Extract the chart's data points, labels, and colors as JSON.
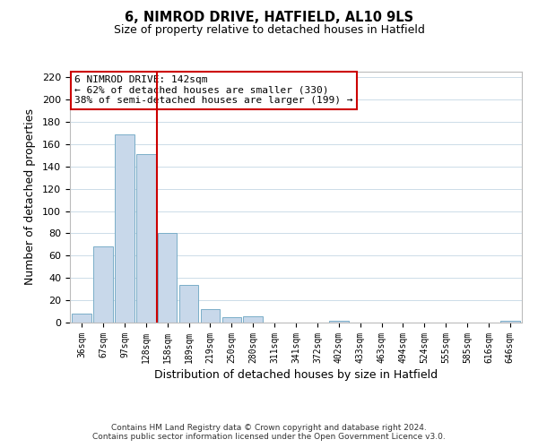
{
  "title": "6, NIMROD DRIVE, HATFIELD, AL10 9LS",
  "subtitle": "Size of property relative to detached houses in Hatfield",
  "xlabel": "Distribution of detached houses by size in Hatfield",
  "ylabel": "Number of detached properties",
  "categories": [
    "36sqm",
    "67sqm",
    "97sqm",
    "128sqm",
    "158sqm",
    "189sqm",
    "219sqm",
    "250sqm",
    "280sqm",
    "311sqm",
    "341sqm",
    "372sqm",
    "402sqm",
    "433sqm",
    "463sqm",
    "494sqm",
    "524sqm",
    "555sqm",
    "585sqm",
    "616sqm",
    "646sqm"
  ],
  "values": [
    8,
    68,
    169,
    151,
    80,
    34,
    12,
    5,
    6,
    0,
    0,
    0,
    2,
    0,
    0,
    0,
    0,
    0,
    0,
    0,
    2
  ],
  "bar_color": "#c8d8ea",
  "bar_edge_color": "#7aaec8",
  "vline_x": 3.5,
  "vline_color": "#cc0000",
  "annotation_title": "6 NIMROD DRIVE: 142sqm",
  "annotation_line1": "← 62% of detached houses are smaller (330)",
  "annotation_line2": "38% of semi-detached houses are larger (199) →",
  "annotation_box_color": "#ffffff",
  "annotation_box_edge": "#cc0000",
  "ylim": [
    0,
    225
  ],
  "yticks": [
    0,
    20,
    40,
    60,
    80,
    100,
    120,
    140,
    160,
    180,
    200,
    220
  ],
  "footer1": "Contains HM Land Registry data © Crown copyright and database right 2024.",
  "footer2": "Contains public sector information licensed under the Open Government Licence v3.0.",
  "background_color": "#ffffff",
  "grid_color": "#ccdce8"
}
